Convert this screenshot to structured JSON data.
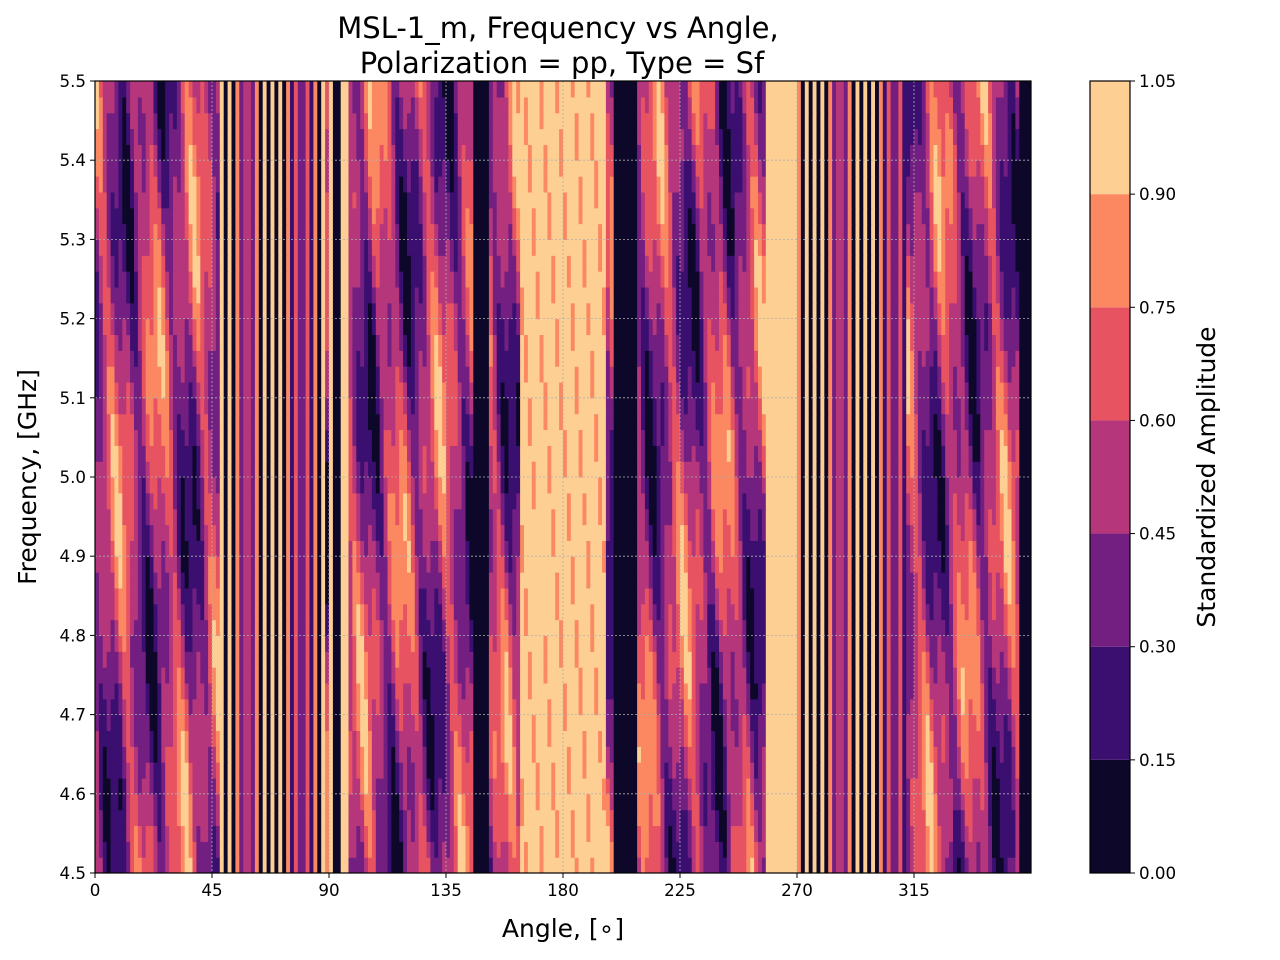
{
  "chart_data": {
    "type": "heatmap",
    "title_lines": [
      "MSL-1_m, Frequency vs Angle,",
      "Polarization = pp, Type = Sf"
    ],
    "xlabel": "Angle, [∘]",
    "ylabel": "Frequency, [GHz]",
    "xlim": [
      0,
      360
    ],
    "ylim": [
      4.5,
      5.5
    ],
    "x_ticks": [
      0,
      45,
      90,
      135,
      180,
      225,
      270,
      315
    ],
    "x_tick_labels": [
      "0",
      "45",
      "90",
      "135",
      "180",
      "225",
      "270",
      "315"
    ],
    "y_ticks": [
      4.5,
      4.6,
      4.7,
      4.8,
      4.9,
      5.0,
      5.1,
      5.2,
      5.3,
      5.4,
      5.5
    ],
    "y_tick_labels": [
      "4.5",
      "4.6",
      "4.7",
      "4.8",
      "4.9",
      "5.0",
      "5.1",
      "5.2",
      "5.3",
      "5.4",
      "5.5"
    ],
    "grid": true,
    "colormap": "magma",
    "colorbar": {
      "label": "Standardized Amplitude",
      "levels": [
        0.0,
        0.15,
        0.3,
        0.45,
        0.6,
        0.75,
        0.9,
        1.05
      ],
      "tick_labels": [
        "0.00",
        "0.15",
        "0.30",
        "0.45",
        "0.60",
        "0.75",
        "0.90",
        "1.05"
      ],
      "band_colors": [
        "#0d0829",
        "#3b0f70",
        "#721f81",
        "#b5367a",
        "#e85362",
        "#fb8861",
        "#fecf92"
      ]
    },
    "features": {
      "fringe_regions": [
        {
          "x_start": 48,
          "x_end": 89,
          "period_deg": 2.8
        },
        {
          "x_start": 262,
          "x_end": 312,
          "period_deg": 2.8
        }
      ],
      "bright_regions": [
        {
          "x_start": 90,
          "x_end": 98,
          "value": 0.97
        },
        {
          "x_start": 163,
          "x_end": 197,
          "value": 0.95
        },
        {
          "x_start": 258,
          "x_end": 270,
          "value": 0.97
        }
      ],
      "dark_regions": [
        {
          "x_start": 91,
          "x_end": 95,
          "value": 0.05
        },
        {
          "x_start": 145,
          "x_end": 152,
          "value": 0.08
        },
        {
          "x_start": 200,
          "x_end": 208,
          "value": 0.08
        },
        {
          "x_start": 355,
          "x_end": 360,
          "value": 0.08
        }
      ]
    }
  }
}
